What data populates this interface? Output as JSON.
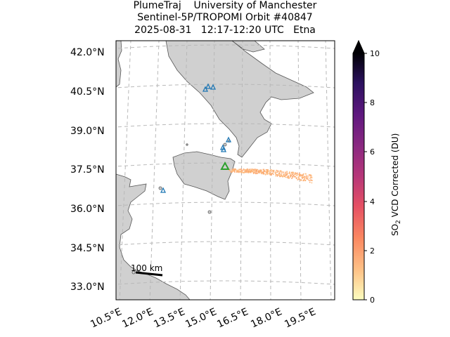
{
  "title": {
    "line1": "PlumeTraj    University of Manchester",
    "line2": "Sentinel-5P/TROPOMI Orbit #40847",
    "line3": "2025-08-31   12:17-12:20 UTC   Etna"
  },
  "map": {
    "lat_labels": [
      "42.0°N",
      "40.5°N",
      "39.0°N",
      "37.5°N",
      "36.0°N",
      "34.5°N",
      "33.0°N"
    ],
    "lon_labels": [
      "10.5°E",
      "12.0°E",
      "13.5°E",
      "15.0°E",
      "16.5°E",
      "18.0°E",
      "19.5°E"
    ],
    "gridlines": "dashed grey",
    "land_color": "#d0d0d0",
    "ocean_color": "#ffffff",
    "scale_bar_label": "100 km",
    "volcano_markers": {
      "target_color": "#2ca02c",
      "other_color": "#1f77b4",
      "target_name": "Etna"
    }
  },
  "colorbar": {
    "label_main": "SO",
    "label_sub": "2",
    "label_rest": " VCD Corrected (DU)",
    "ticks": [
      "0",
      "2",
      "4",
      "6",
      "8",
      "10"
    ],
    "min": 0,
    "max": 10,
    "colormap": "magma_r",
    "extend": "max"
  }
}
